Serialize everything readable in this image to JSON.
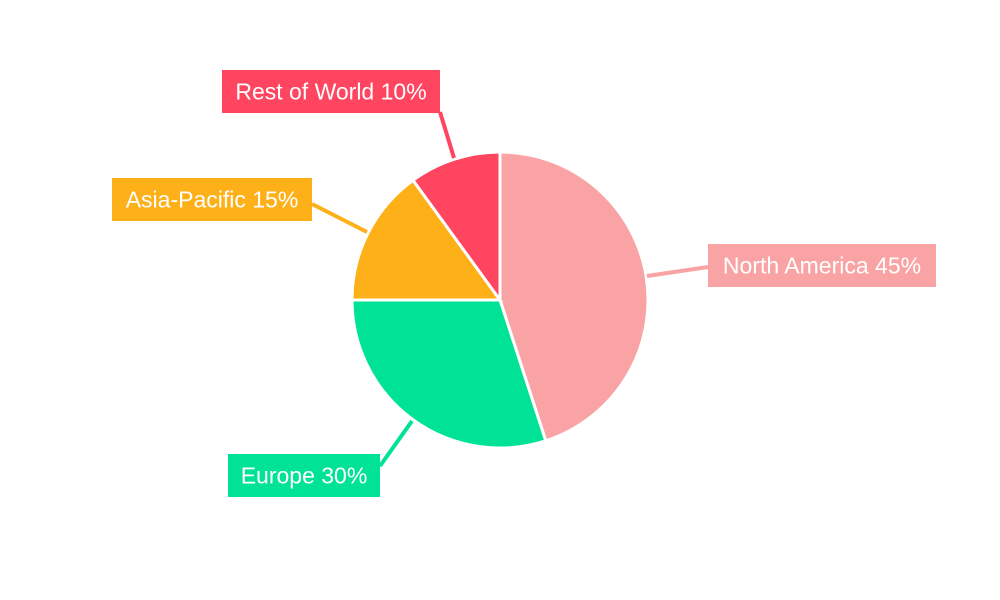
{
  "chart_data": {
    "type": "pie",
    "categories": [
      "North America",
      "Europe",
      "Asia-Pacific",
      "Rest of World"
    ],
    "values": [
      45,
      30,
      15,
      10
    ],
    "labels": [
      "North America 45%",
      "Europe 30%",
      "Asia-Pacific 15%",
      "Rest of World 10%"
    ],
    "colors": [
      "#F9A3A4",
      "#00E396",
      "#FEB019",
      "#FF4560"
    ],
    "start_angle": "top",
    "direction": "clockwise",
    "title": "",
    "legend": "none"
  }
}
